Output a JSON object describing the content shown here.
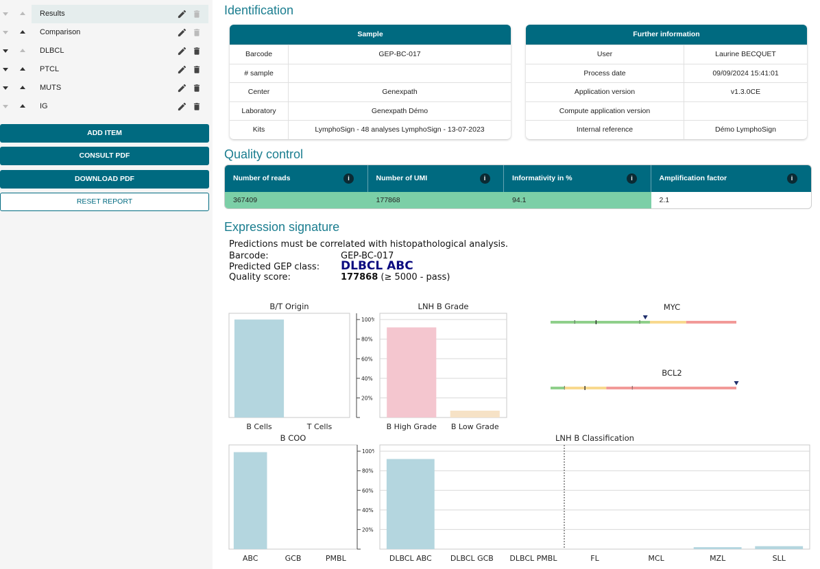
{
  "sidebar": {
    "items": [
      {
        "label": "Results",
        "down_faded": true,
        "up_faded": true,
        "delete_faded": true,
        "active": true
      },
      {
        "label": "Comparison",
        "down_faded": true,
        "up_faded": false,
        "delete_faded": true,
        "active": false
      },
      {
        "label": "DLBCL",
        "down_faded": false,
        "up_faded": true,
        "delete_faded": false,
        "active": false
      },
      {
        "label": "PTCL",
        "down_faded": false,
        "up_faded": false,
        "delete_faded": false,
        "active": false
      },
      {
        "label": "MUTS",
        "down_faded": false,
        "up_faded": false,
        "delete_faded": false,
        "active": false
      },
      {
        "label": "IG",
        "down_faded": true,
        "up_faded": false,
        "delete_faded": false,
        "active": false
      }
    ],
    "buttons": {
      "add_item": "ADD ITEM",
      "consult_pdf": "CONSULT PDF",
      "download_pdf": "DOWNLOAD PDF",
      "reset_report": "RESET REPORT"
    }
  },
  "identification": {
    "title": "Identification",
    "sample": {
      "header": "Sample",
      "rows": [
        {
          "label": "Barcode",
          "value": "GEP-BC-017"
        },
        {
          "label": "# sample",
          "value": ""
        },
        {
          "label": "Center",
          "value": "Genexpath"
        },
        {
          "label": "Laboratory",
          "value": "Genexpath Démo"
        },
        {
          "label": "Kits",
          "value": "LymphoSign - 48 analyses LymphoSign - 13-07-2023"
        }
      ]
    },
    "further": {
      "header": "Further information",
      "rows": [
        {
          "label": "User",
          "value": "Laurine BECQUET"
        },
        {
          "label": "Process date",
          "value": "09/09/2024 15:41:01"
        },
        {
          "label": "Application version",
          "value": "v1.3.0CE"
        },
        {
          "label": "Compute application version",
          "value": ""
        },
        {
          "label": "Internal reference",
          "value": "Démo LymphoSign"
        }
      ]
    }
  },
  "quality": {
    "title": "Quality control",
    "headers": [
      "Number of reads",
      "Number of UMI",
      "Informativity in %",
      "Amplification factor"
    ],
    "values": [
      "367409",
      "177868",
      "94.1",
      "2.1"
    ],
    "pass_color": "#7ccfa7"
  },
  "signature": {
    "title": "Expression signature",
    "note": "Predictions must be correlated with histopathological analysis.",
    "barcode_label": "Barcode:",
    "barcode_value": "GEP-BC-017",
    "class_label": "Predicted GEP class:",
    "class_value": "DLBCL ABC",
    "score_label": "Quality score:",
    "score_value": "177868",
    "score_note": "(≥ 5000 - pass)"
  },
  "colors": {
    "accent": "#006a80",
    "title": "#1a7d8f",
    "bar_blue": "#b4d6df",
    "bar_pink": "#f4c6cf",
    "bar_beige": "#f6e2c6",
    "class_text": "#0b0b80"
  },
  "chart_data": [
    {
      "type": "bar",
      "title": "B/T Origin",
      "categories": [
        "B Cells",
        "T Cells"
      ],
      "values": [
        100,
        0
      ],
      "ylim": [
        0,
        100
      ],
      "yticks": [
        "20%",
        "40%",
        "60%",
        "80%",
        "100%"
      ],
      "colors": [
        "#b4d6df",
        "#b4d6df"
      ]
    },
    {
      "type": "bar",
      "title": "LNH B Grade",
      "categories": [
        "B High Grade",
        "B Low Grade"
      ],
      "values": [
        92,
        7
      ],
      "ylim": [
        0,
        100
      ],
      "yticks": [
        "20%",
        "40%",
        "60%",
        "80%",
        "100%"
      ],
      "colors": [
        "#f4c6cf",
        "#f6e2c6"
      ]
    },
    {
      "type": "bar",
      "title": "B COO",
      "categories": [
        "ABC",
        "GCB",
        "PMBL"
      ],
      "values": [
        99,
        0,
        0
      ],
      "ylim": [
        0,
        100
      ],
      "yticks": [
        "20%",
        "40%",
        "60%",
        "80%",
        "100%"
      ],
      "colors": [
        "#b4d6df",
        "#b4d6df",
        "#b4d6df"
      ]
    },
    {
      "type": "bar",
      "title": "LNH B Classification",
      "categories": [
        "DLBCL ABC",
        "DLBCL GCB",
        "DLBCL PMBL",
        "FL",
        "MCL",
        "MZL",
        "SLL"
      ],
      "values": [
        92,
        0,
        0,
        0,
        0,
        2,
        3
      ],
      "ylim": [
        0,
        100
      ],
      "colors": [
        "#b4d6df",
        "#b4d6df",
        "#b4d6df",
        "#b4d6df",
        "#b4d6df",
        "#b4d6df",
        "#b4d6df"
      ]
    }
  ],
  "gauges": [
    {
      "title": "MYC",
      "segments": [
        {
          "from": 0,
          "to": 0.535,
          "color": "#8fcf8b"
        },
        {
          "from": 0.535,
          "to": 0.73,
          "color": "#f8d98e"
        },
        {
          "from": 0.73,
          "to": 1,
          "color": "#f29a98"
        }
      ],
      "ticks": [
        0.13,
        0.245,
        0.48
      ],
      "marker": 0.51
    },
    {
      "title": "BCL2",
      "segments": [
        {
          "from": 0,
          "to": 0.075,
          "color": "#8fcf8b"
        },
        {
          "from": 0.075,
          "to": 0.3,
          "color": "#f8d98e"
        },
        {
          "from": 0.3,
          "to": 1,
          "color": "#f29a98"
        }
      ],
      "ticks": [
        0.075,
        0.185,
        0.44
      ],
      "marker": 1.0
    }
  ]
}
